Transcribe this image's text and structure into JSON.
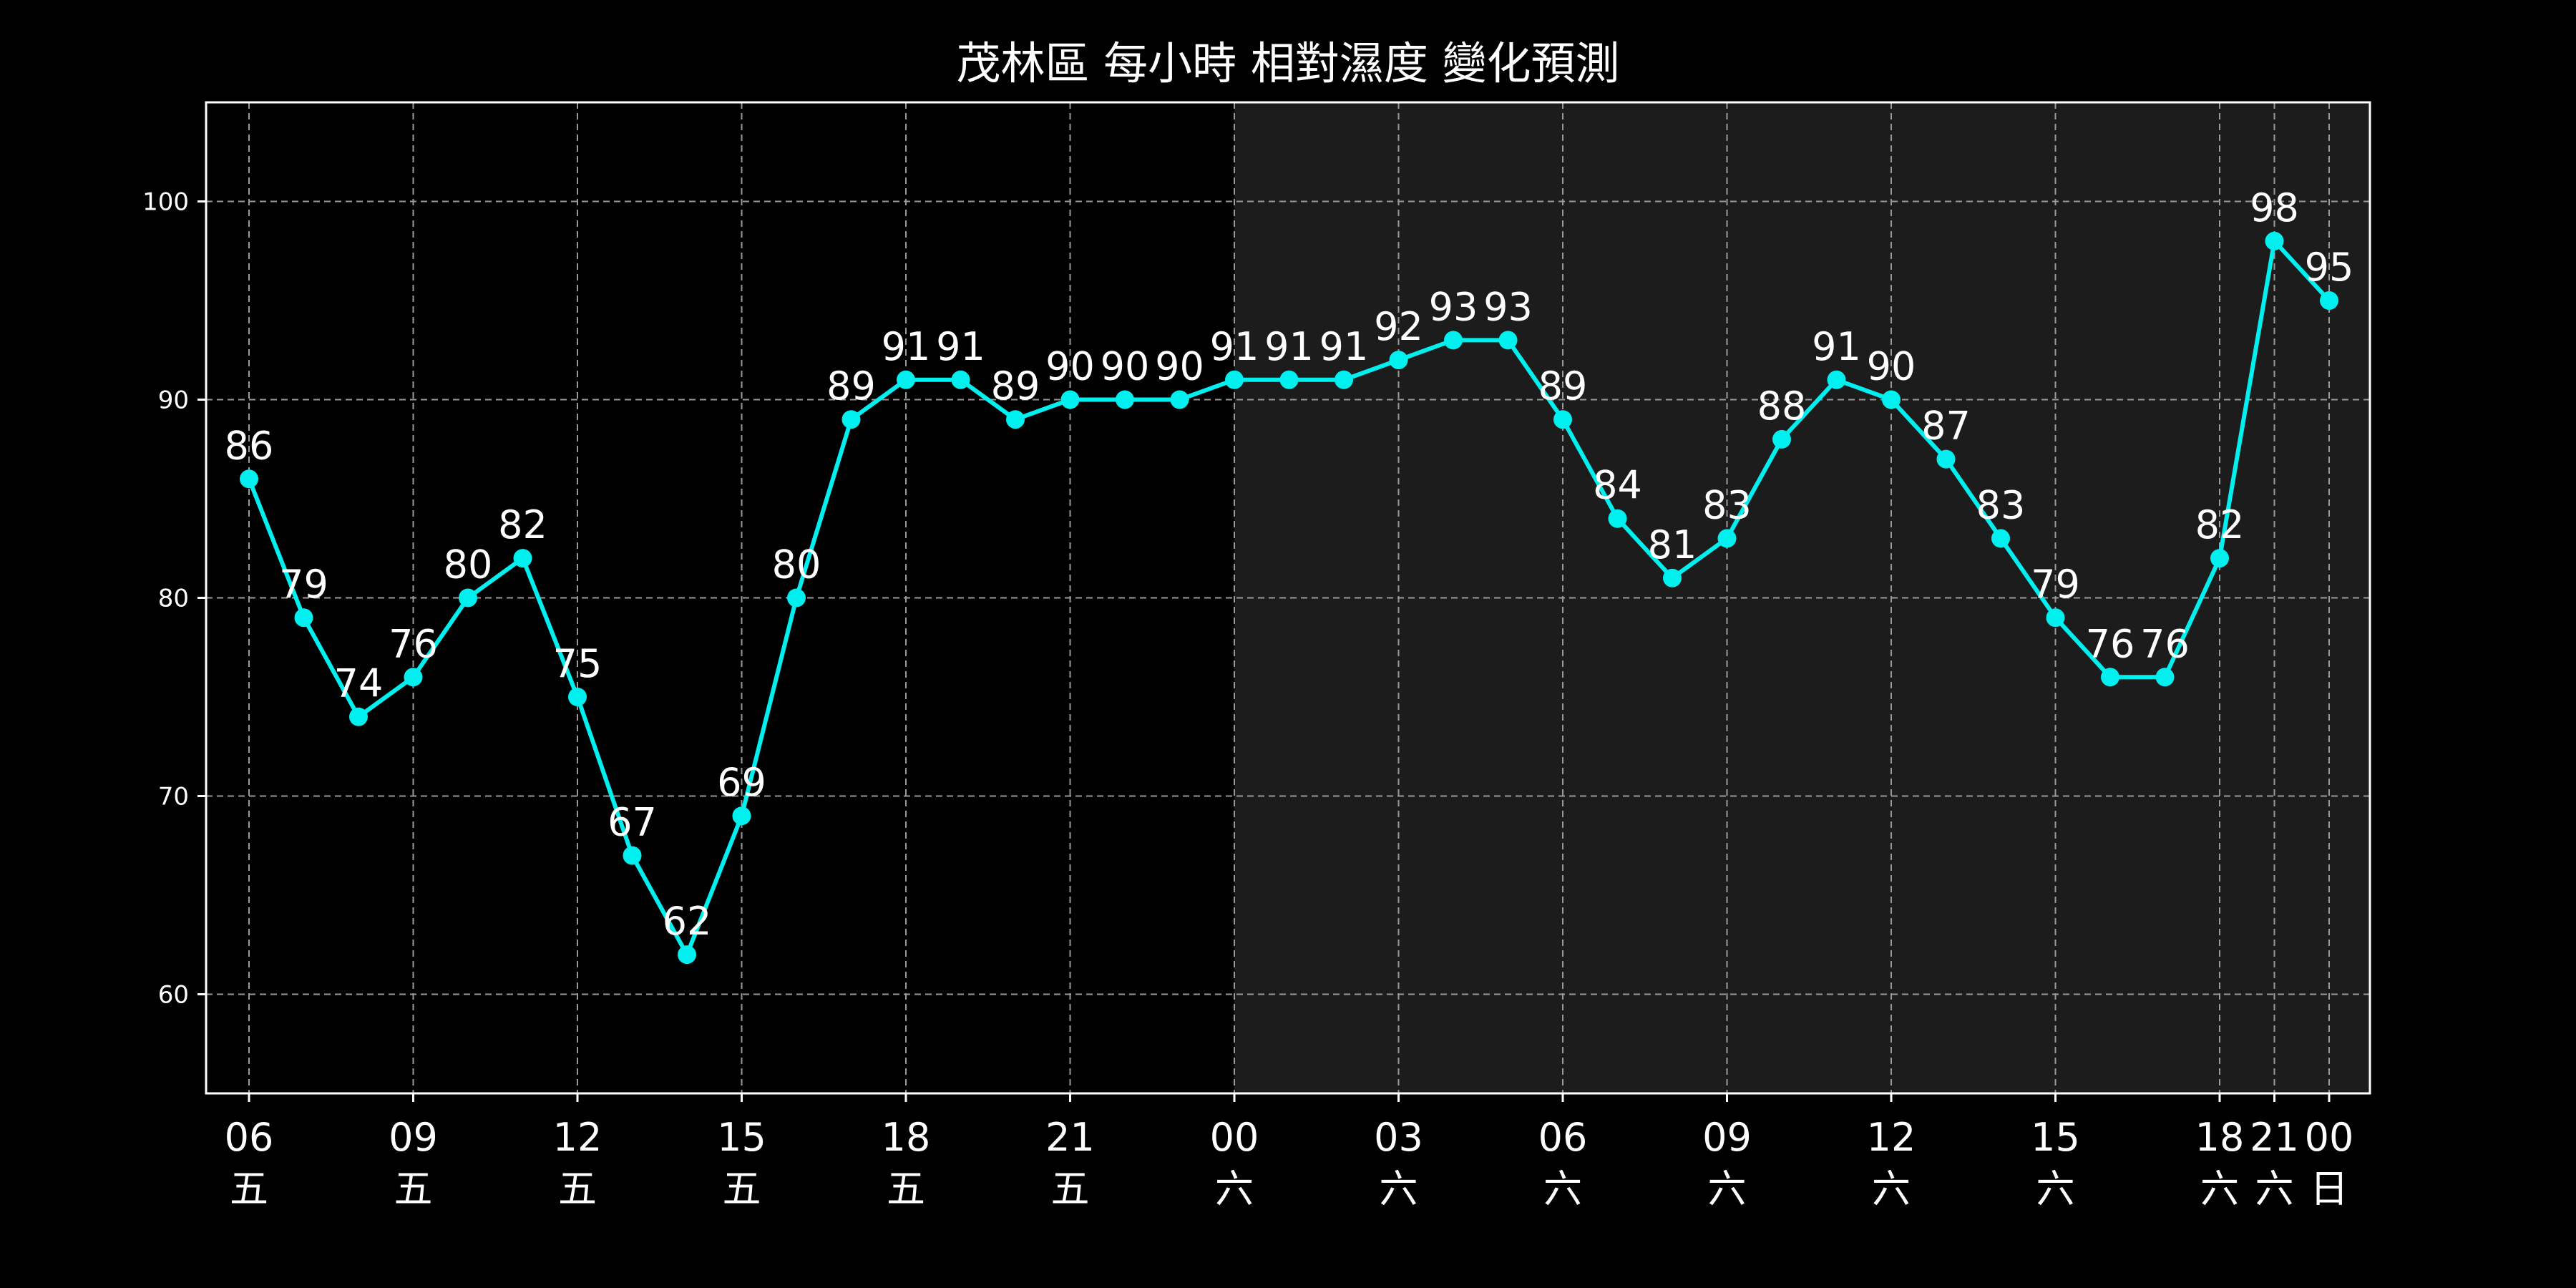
{
  "chart_data": {
    "type": "line",
    "title": "茂林區 每小時 相對濕度 變化預測",
    "xlabel": "",
    "ylabel": "",
    "ylim": [
      55,
      105
    ],
    "yticks": [
      60,
      70,
      80,
      90,
      100
    ],
    "grid": true,
    "legend": "none",
    "hours": [
      "06",
      "07",
      "08",
      "09",
      "10",
      "11",
      "12",
      "13",
      "14",
      "15",
      "16",
      "17",
      "18",
      "19",
      "20",
      "21",
      "22",
      "23",
      "00",
      "01",
      "02",
      "03",
      "04",
      "05",
      "06",
      "07",
      "08",
      "09",
      "10",
      "11",
      "12",
      "13",
      "14",
      "15",
      "16",
      "17",
      "18",
      "21",
      "00"
    ],
    "values": [
      86,
      79,
      74,
      76,
      80,
      82,
      75,
      67,
      62,
      69,
      80,
      89,
      91,
      91,
      89,
      90,
      90,
      90,
      91,
      91,
      91,
      92,
      93,
      93,
      89,
      84,
      81,
      83,
      88,
      91,
      90,
      87,
      83,
      79,
      76,
      76,
      82,
      98,
      95
    ],
    "x_tick_labels": [
      {
        "index": 0,
        "hour": "06",
        "day": "五"
      },
      {
        "index": 3,
        "hour": "09",
        "day": "五"
      },
      {
        "index": 6,
        "hour": "12",
        "day": "五"
      },
      {
        "index": 9,
        "hour": "15",
        "day": "五"
      },
      {
        "index": 12,
        "hour": "18",
        "day": "五"
      },
      {
        "index": 15,
        "hour": "21",
        "day": "五"
      },
      {
        "index": 18,
        "hour": "00",
        "day": "六"
      },
      {
        "index": 21,
        "hour": "03",
        "day": "六"
      },
      {
        "index": 24,
        "hour": "06",
        "day": "六"
      },
      {
        "index": 27,
        "hour": "09",
        "day": "六"
      },
      {
        "index": 30,
        "hour": "12",
        "day": "六"
      },
      {
        "index": 33,
        "hour": "15",
        "day": "六"
      },
      {
        "index": 36,
        "hour": "18",
        "day": "六"
      },
      {
        "index": 37,
        "hour": "21",
        "day": "六"
      },
      {
        "index": 38,
        "hour": "00",
        "day": "日"
      }
    ],
    "shaded_region": {
      "from_index": 18,
      "to_index": 38
    },
    "colors": {
      "background": "#000000",
      "line": "#00f0f0",
      "shade": "#1c1c1c",
      "grid": "#9a9a9a",
      "frame": "#ffffff",
      "text": "#ffffff"
    }
  }
}
